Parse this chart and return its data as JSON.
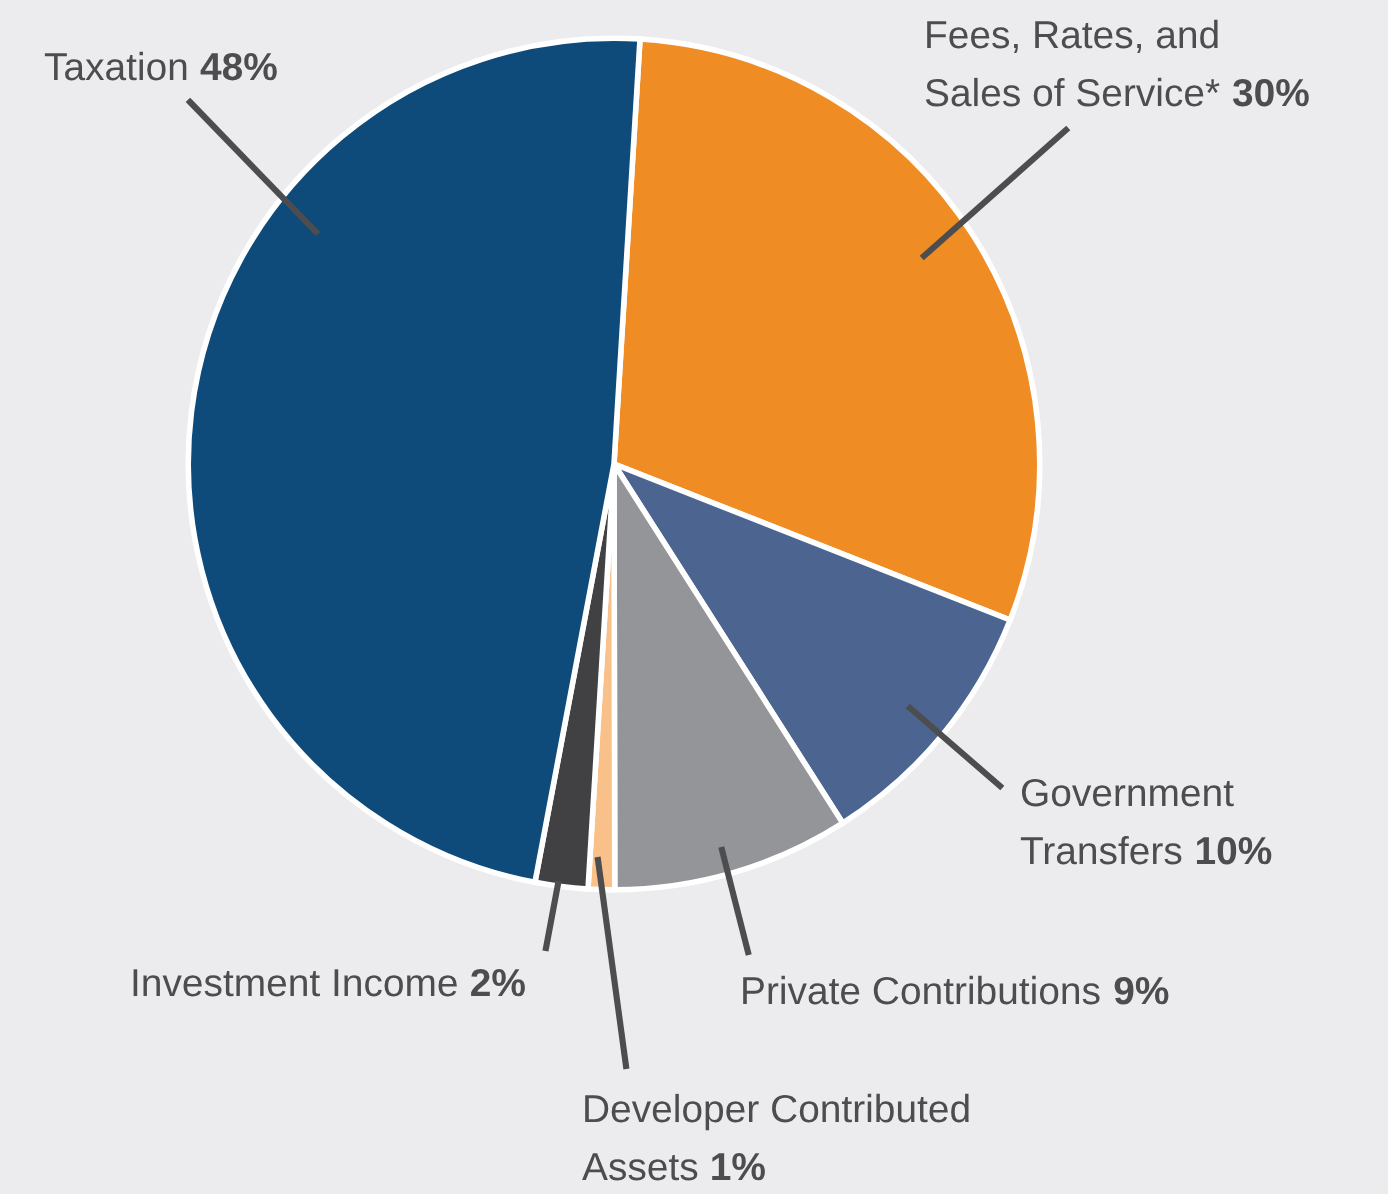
{
  "chart_data": {
    "type": "pie",
    "categories": [
      "Fees, Rates, and\nSales of Service*",
      "Government\nTransfers",
      "Private Contributions",
      "Developer Contributed\nAssets",
      "Investment Income",
      "Taxation"
    ],
    "values": [
      30,
      10,
      9,
      1,
      2,
      48
    ],
    "value_labels": [
      "30%",
      "10%",
      "9%",
      "1%",
      "2%",
      "48%"
    ],
    "colors": [
      "#f08c24",
      "#4c6590",
      "#939598",
      "#f9c08a",
      "#414042",
      "#0e4a7a"
    ],
    "legend": false
  }
}
